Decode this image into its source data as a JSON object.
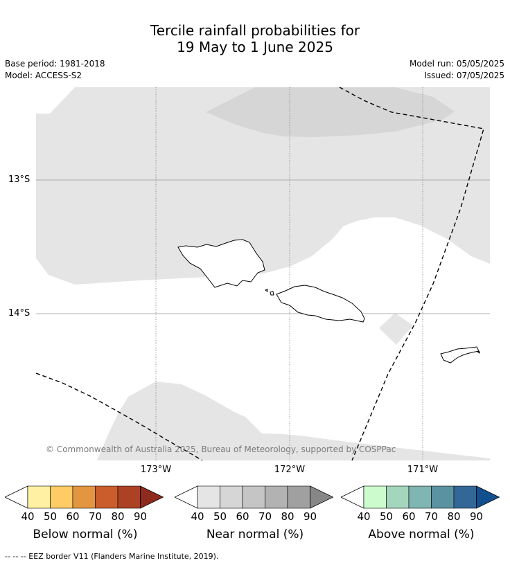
{
  "title": {
    "line1": "Tercile rainfall probabilities for",
    "line2": "19 May to 1 June 2025"
  },
  "meta": {
    "base_period": "Base period: 1981-2018",
    "model": "Model: ACCESS-S2",
    "model_run": "Model run: 05/05/2025",
    "issued": "Issued: 07/05/2025"
  },
  "axes": {
    "lat_labels": [
      "13°S",
      "14°S"
    ],
    "lon_labels": [
      "173°W",
      "172°W",
      "171°W"
    ]
  },
  "copyright": "© Commonwealth of Australia 2025, Bureau of Meteorology, supported by COSPPac",
  "colorbars": [
    {
      "title": "Below normal (%)",
      "ticks": [
        "40",
        "50",
        "60",
        "70",
        "80",
        "90"
      ],
      "colors": [
        "#fff0a4",
        "#fecb65",
        "#e3953f",
        "#cb5c2c",
        "#ad4125",
        "#8e2b1e"
      ]
    },
    {
      "title": "Near normal (%)",
      "ticks": [
        "40",
        "50",
        "60",
        "70",
        "80",
        "90"
      ],
      "colors": [
        "#e5e5e5",
        "#d6d6d6",
        "#c5c5c5",
        "#b2b2b2",
        "#a0a0a0",
        "#878787"
      ]
    },
    {
      "title": "Above normal (%)",
      "ticks": [
        "40",
        "50",
        "60",
        "70",
        "80",
        "90"
      ],
      "colors": [
        "#ccfbcd",
        "#a3d6bd",
        "#7fb5b2",
        "#5b92a1",
        "#326797",
        "#11508e"
      ]
    }
  ],
  "footnote": "--  --  -- EEZ border V11 (Flanders Marine Institute, 2019).",
  "colors": {
    "near_normal_40": "#e5e5e5",
    "near_normal_50": "#d6d6d6",
    "coastline": "#000000",
    "gridline": "#999999"
  }
}
